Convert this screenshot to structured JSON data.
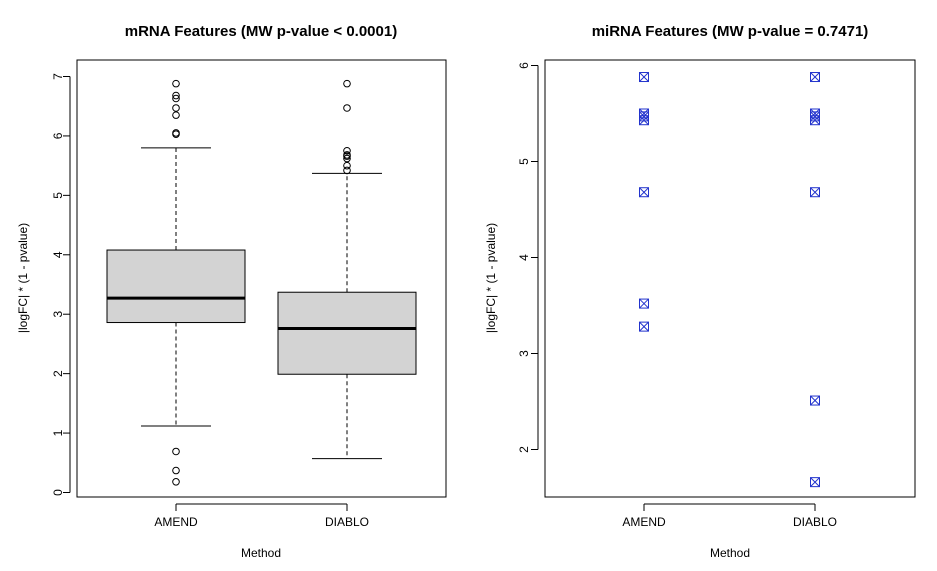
{
  "chart_data": [
    {
      "type": "boxplot",
      "title": "mRNA Features (MW p-value < 0.0001)",
      "xlabel": "Method",
      "ylabel": "|logFC| * (1 - pvalue)",
      "categories": [
        "AMEND",
        "DIABLO"
      ],
      "ylim": [
        0,
        7
      ],
      "yticks": [
        "0",
        "1",
        "2",
        "3",
        "4",
        "5",
        "6",
        "7"
      ],
      "boxes": [
        {
          "category": "AMEND",
          "lower_whisker": 1.12,
          "q1": 2.86,
          "median": 3.27,
          "q3": 4.08,
          "upper_whisker": 5.8,
          "outliers": [
            0.18,
            0.37,
            0.69,
            6.03,
            6.05,
            6.35,
            6.47,
            6.63,
            6.68,
            6.88
          ]
        },
        {
          "category": "DIABLO",
          "lower_whisker": 0.57,
          "q1": 1.99,
          "median": 2.76,
          "q3": 3.37,
          "upper_whisker": 5.37,
          "outliers": [
            5.42,
            5.5,
            5.62,
            5.66,
            5.68,
            5.75,
            6.47,
            6.88
          ]
        }
      ],
      "box_fill": "#d3d3d3",
      "grid": false
    },
    {
      "type": "scatter",
      "title": "miRNA Features (MW p-value = 0.7471)",
      "xlabel": "Method",
      "ylabel": "|logFC| * (1 - pvalue)",
      "categories": [
        "AMEND",
        "DIABLO"
      ],
      "ylim": [
        1.5,
        6
      ],
      "yticks": [
        "2",
        "3",
        "4",
        "5",
        "6"
      ],
      "series": [
        {
          "category": "AMEND",
          "values": [
            3.28,
            3.52,
            4.68,
            5.43,
            5.47,
            5.5,
            5.88
          ]
        },
        {
          "category": "DIABLO",
          "values": [
            1.66,
            2.51,
            4.68,
            5.43,
            5.47,
            5.5,
            5.88
          ]
        }
      ],
      "marker": "boxed-x",
      "marker_color": "#2233cc",
      "grid": false
    }
  ]
}
